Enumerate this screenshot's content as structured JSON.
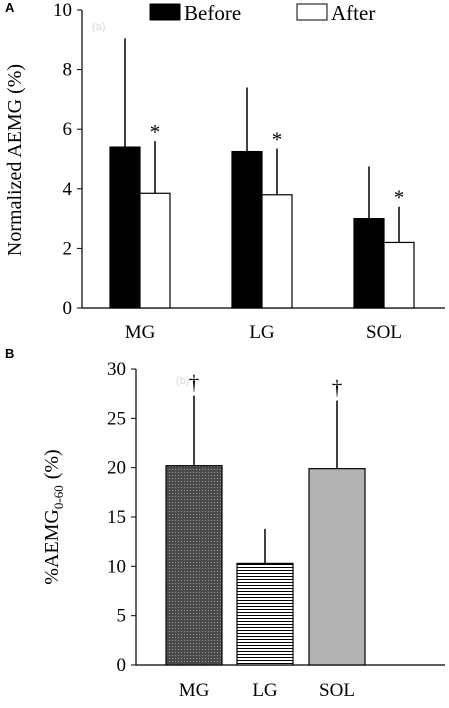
{
  "figure": {
    "panels": [
      "A",
      "B"
    ]
  },
  "chart_data": [
    {
      "type": "bar",
      "panel_label": "A",
      "faint_tag": "(a)",
      "ylabel": "Normalized AEMG (%)",
      "xlabel": "",
      "ylim": [
        0,
        10
      ],
      "yticks": [
        "0",
        "2",
        "4",
        "6",
        "8",
        "10"
      ],
      "categories": [
        "MG",
        "LG",
        "SOL"
      ],
      "legend": {
        "position": "top",
        "entries": [
          "Before",
          "After"
        ]
      },
      "series": [
        {
          "name": "Before",
          "color": "#000000",
          "values": [
            5.4,
            5.25,
            3.0
          ],
          "error": [
            3.65,
            2.15,
            1.75
          ]
        },
        {
          "name": "After",
          "color": "#ffffff",
          "values": [
            3.85,
            3.8,
            2.2
          ],
          "error": [
            1.75,
            1.55,
            1.2
          ]
        }
      ],
      "significance": [
        "*",
        "*",
        "*"
      ]
    },
    {
      "type": "bar",
      "panel_label": "B",
      "faint_tag": "(b)",
      "ylabel_main": "%AEMG",
      "ylabel_sub": "0-60",
      "ylabel_unit": "(%)",
      "xlabel": "",
      "ylim": [
        0,
        30
      ],
      "yticks": [
        "0",
        "5",
        "10",
        "15",
        "20",
        "25",
        "30"
      ],
      "categories": [
        "MG",
        "LG",
        "SOL"
      ],
      "values": [
        20.2,
        10.3,
        19.9
      ],
      "error": [
        7.1,
        3.5,
        6.9
      ],
      "fills": [
        "dark-dotted",
        "horizontal-lines",
        "light-gray"
      ],
      "significance": [
        "†",
        "",
        "†"
      ]
    }
  ]
}
